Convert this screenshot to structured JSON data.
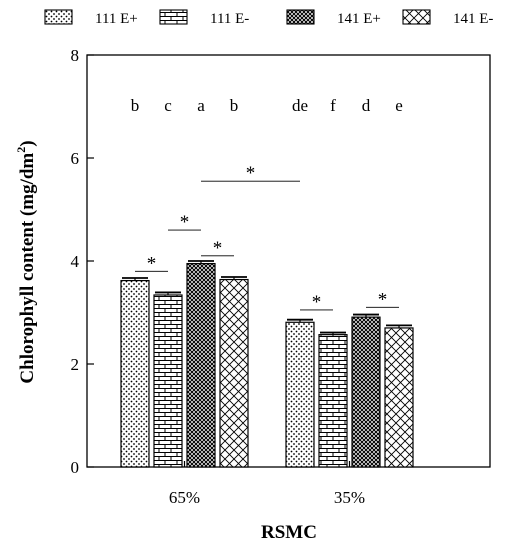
{
  "chart_data": {
    "type": "bar",
    "xlabel": "RSMC",
    "ylabel": "Chlorophyll content (mg/dm²)",
    "ylabel_main": "Chlorophyll content (mg/dm",
    "ylabel_sup": "2",
    "ylabel_close": ")",
    "ylim": [
      0,
      8
    ],
    "yticks": [
      "0",
      "2",
      "4",
      "6",
      "8"
    ],
    "grid": false,
    "legend_position": "top",
    "categories": [
      "65%",
      "35%"
    ],
    "series": [
      {
        "name": "111 E+",
        "pattern": "dots",
        "values": [
          3.62,
          2.81
        ],
        "errors": [
          0.05,
          0.05
        ]
      },
      {
        "name": "111 E-",
        "pattern": "bricks",
        "values": [
          3.34,
          2.57
        ],
        "errors": [
          0.05,
          0.04
        ]
      },
      {
        "name": "141 E+",
        "pattern": "crosshatch",
        "values": [
          3.95,
          2.91
        ],
        "errors": [
          0.05,
          0.05
        ]
      },
      {
        "name": "141 E-",
        "pattern": "diagonal",
        "values": [
          3.64,
          2.7
        ],
        "errors": [
          0.05,
          0.05
        ]
      }
    ],
    "letters": [
      [
        "b",
        "c",
        "a",
        "b"
      ],
      [
        "de",
        "f",
        "d",
        "e"
      ]
    ],
    "significance_symbol": "*",
    "significance_marks": [
      {
        "y": 3.8,
        "from_category": 0,
        "from_series": 0,
        "to_category": 0,
        "to_series": 1
      },
      {
        "y": 4.1,
        "from_category": 0,
        "from_series": 2,
        "to_category": 0,
        "to_series": 3
      },
      {
        "y": 4.6,
        "from_category": 0,
        "from_series": 1,
        "to_category": 0,
        "to_series": 2
      },
      {
        "y": 5.55,
        "from_category": 0,
        "from_series": 2,
        "to_category": 1,
        "to_series": 0
      },
      {
        "y": 3.05,
        "from_category": 1,
        "from_series": 0,
        "to_category": 1,
        "to_series": 1
      },
      {
        "y": 3.1,
        "from_category": 1,
        "from_series": 2,
        "to_category": 1,
        "to_series": 3
      }
    ]
  }
}
